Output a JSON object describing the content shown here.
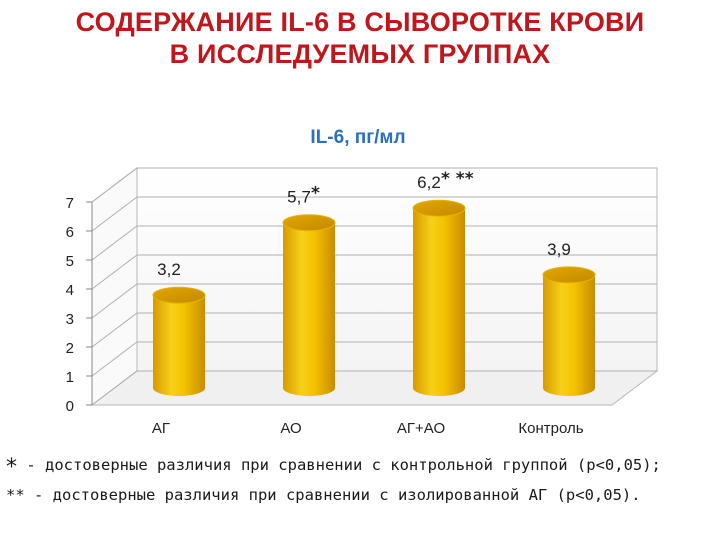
{
  "slide": {
    "title_line1": "СОДЕРЖАНИЕ IL-6 В СЫВОРОТКЕ КРОВИ",
    "title_line2": "В ИССЛЕДУЕМЫХ ГРУППАХ"
  },
  "chart_data": {
    "type": "bar",
    "title": "IL-6, пг/мл",
    "categories": [
      "АГ",
      "АО",
      "АГ+АО",
      "Контроль"
    ],
    "values": [
      3.2,
      5.7,
      6.2,
      3.9
    ],
    "value_labels": [
      "3,2",
      "5,7",
      "6,2",
      "3,9"
    ],
    "annotations": [
      "",
      "*",
      "* **",
      ""
    ],
    "yticks": [
      "0",
      "1",
      "2",
      "3",
      "4",
      "5",
      "6",
      "7"
    ],
    "ylim": [
      0,
      7
    ],
    "grid": true,
    "bar_style": "3d-cylinder",
    "bar_color": "#f2c200",
    "title_color": "#2a6fc4"
  },
  "footnotes": {
    "line1_mark": "*",
    "line1_text": " - достоверные различия при сравнении с контрольной группой (р<0,05);",
    "line2_mark": "**",
    "line2_text": " - достоверные различия при сравнении с изолированной АГ (р<0,05)."
  }
}
